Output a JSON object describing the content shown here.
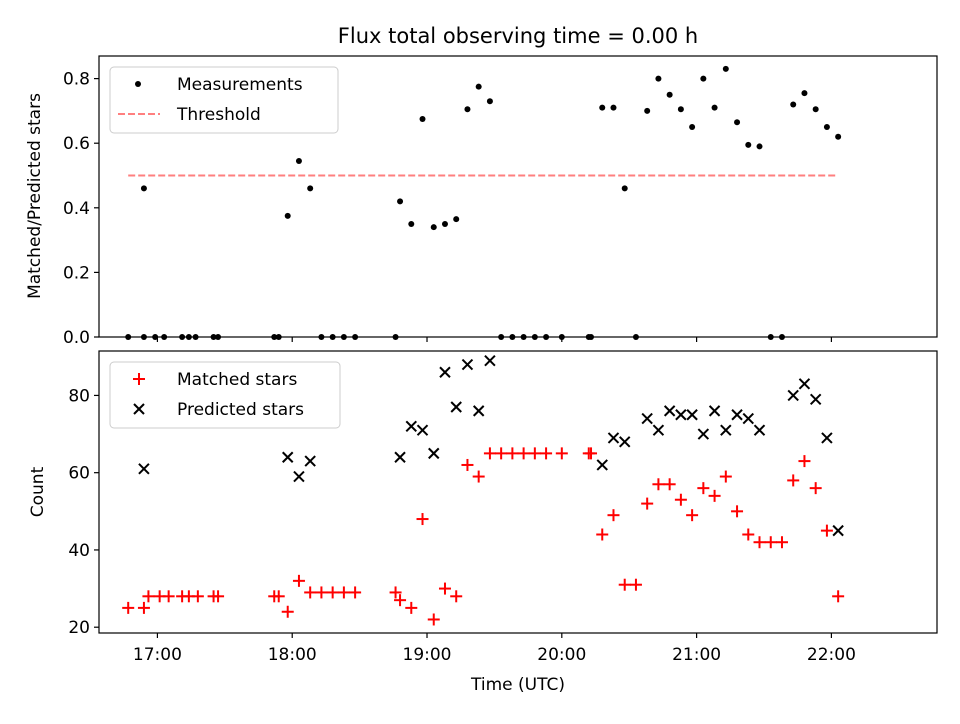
{
  "figure": {
    "title": "Flux total observing time = 0.00 h",
    "xlabel": "Time (UTC)",
    "x_ticks": [
      "17:00",
      "18:00",
      "19:00",
      "20:00",
      "21:00",
      "22:00"
    ]
  },
  "colors": {
    "matched": "#ff0000",
    "predicted": "#000000",
    "threshold": "#ff7f7f",
    "measurements": "#000000"
  },
  "chart_data": [
    {
      "type": "scatter",
      "ylabel": "Matched/Predicted stars",
      "ylim": [
        0,
        0.87
      ],
      "xlim": [
        "16:34",
        "22:47"
      ],
      "y_ticks": [
        "0.0",
        "0.2",
        "0.4",
        "0.6",
        "0.8"
      ],
      "legend": {
        "position": "top-left",
        "entries": [
          "Measurements",
          "Threshold"
        ]
      },
      "threshold": {
        "name": "Threshold",
        "y": 0.5,
        "x_range": [
          "16:47",
          "22:02"
        ]
      },
      "series": [
        {
          "name": "Measurements",
          "points": [
            [
              "16:47",
              0
            ],
            [
              "16:54",
              0.46
            ],
            [
              "16:54",
              0
            ],
            [
              "16:59",
              0
            ],
            [
              "17:03",
              0
            ],
            [
              "17:11",
              0
            ],
            [
              "17:14",
              0
            ],
            [
              "17:17",
              0
            ],
            [
              "17:25",
              0
            ],
            [
              "17:27",
              0
            ],
            [
              "17:52",
              0
            ],
            [
              "17:54",
              0
            ],
            [
              "17:58",
              0.375
            ],
            [
              "18:03",
              0.545
            ],
            [
              "18:08",
              0.46
            ],
            [
              "18:13",
              0
            ],
            [
              "18:18",
              0
            ],
            [
              "18:23",
              0
            ],
            [
              "18:28",
              0
            ],
            [
              "18:46",
              0
            ],
            [
              "18:48",
              0.42
            ],
            [
              "18:53",
              0.35
            ],
            [
              "18:58",
              0.675
            ],
            [
              "19:03",
              0.34
            ],
            [
              "19:08",
              0.35
            ],
            [
              "19:13",
              0.365
            ],
            [
              "19:18",
              0.705
            ],
            [
              "19:23",
              0.775
            ],
            [
              "19:28",
              0.73
            ],
            [
              "19:33",
              0
            ],
            [
              "19:38",
              0
            ],
            [
              "19:43",
              0
            ],
            [
              "19:48",
              0
            ],
            [
              "19:53",
              0
            ],
            [
              "20:00",
              0
            ],
            [
              "20:12",
              0
            ],
            [
              "20:13",
              0
            ],
            [
              "20:18",
              0.71
            ],
            [
              "20:23",
              0.71
            ],
            [
              "20:28",
              0.46
            ],
            [
              "20:33",
              0
            ],
            [
              "20:38",
              0.7
            ],
            [
              "20:43",
              0.8
            ],
            [
              "20:48",
              0.75
            ],
            [
              "20:53",
              0.705
            ],
            [
              "20:58",
              0.65
            ],
            [
              "21:03",
              0.8
            ],
            [
              "21:08",
              0.71
            ],
            [
              "21:13",
              0.83
            ],
            [
              "21:18",
              0.665
            ],
            [
              "21:23",
              0.595
            ],
            [
              "21:28",
              0.59
            ],
            [
              "21:33",
              0
            ],
            [
              "21:38",
              0
            ],
            [
              "21:43",
              0.72
            ],
            [
              "21:48",
              0.755
            ],
            [
              "21:53",
              0.705
            ],
            [
              "21:58",
              0.65
            ],
            [
              "22:03",
              0.62
            ]
          ]
        }
      ]
    },
    {
      "type": "scatter",
      "ylabel": "Count",
      "ylim": [
        18.5,
        91.5
      ],
      "xlim": [
        "16:34",
        "22:47"
      ],
      "y_ticks": [
        "20",
        "40",
        "60",
        "80"
      ],
      "legend": {
        "position": "top-left",
        "entries": [
          "Matched stars",
          "Predicted stars"
        ]
      },
      "series": [
        {
          "name": "Matched stars",
          "marker": "plus",
          "points": [
            [
              "16:47",
              25
            ],
            [
              "16:54",
              25
            ],
            [
              "16:56",
              28
            ],
            [
              "17:01",
              28
            ],
            [
              "17:05",
              28
            ],
            [
              "17:11",
              28
            ],
            [
              "17:14",
              28
            ],
            [
              "17:18",
              28
            ],
            [
              "17:25",
              28
            ],
            [
              "17:27",
              28
            ],
            [
              "17:52",
              28
            ],
            [
              "17:54",
              28
            ],
            [
              "17:58",
              24
            ],
            [
              "18:03",
              32
            ],
            [
              "18:08",
              29
            ],
            [
              "18:13",
              29
            ],
            [
              "18:18",
              29
            ],
            [
              "18:23",
              29
            ],
            [
              "18:28",
              29
            ],
            [
              "18:46",
              29
            ],
            [
              "18:48",
              27
            ],
            [
              "18:53",
              25
            ],
            [
              "18:58",
              48
            ],
            [
              "19:03",
              22
            ],
            [
              "19:08",
              30
            ],
            [
              "19:13",
              28
            ],
            [
              "19:18",
              62
            ],
            [
              "19:23",
              59
            ],
            [
              "19:28",
              65
            ],
            [
              "19:33",
              65
            ],
            [
              "19:38",
              65
            ],
            [
              "19:43",
              65
            ],
            [
              "19:48",
              65
            ],
            [
              "19:53",
              65
            ],
            [
              "20:00",
              65
            ],
            [
              "20:12",
              65
            ],
            [
              "20:13",
              65
            ],
            [
              "20:18",
              44
            ],
            [
              "20:23",
              49
            ],
            [
              "20:28",
              31
            ],
            [
              "20:33",
              31
            ],
            [
              "20:38",
              52
            ],
            [
              "20:43",
              57
            ],
            [
              "20:48",
              57
            ],
            [
              "20:53",
              53
            ],
            [
              "20:58",
              49
            ],
            [
              "21:03",
              56
            ],
            [
              "21:08",
              54
            ],
            [
              "21:13",
              59
            ],
            [
              "21:18",
              50
            ],
            [
              "21:23",
              44
            ],
            [
              "21:28",
              42
            ],
            [
              "21:33",
              42
            ],
            [
              "21:38",
              42
            ],
            [
              "21:43",
              58
            ],
            [
              "21:48",
              63
            ],
            [
              "21:53",
              56
            ],
            [
              "21:58",
              45
            ],
            [
              "22:03",
              28
            ]
          ]
        },
        {
          "name": "Predicted stars",
          "marker": "x",
          "points": [
            [
              "16:54",
              61
            ],
            [
              "17:58",
              64
            ],
            [
              "18:03",
              59
            ],
            [
              "18:08",
              63
            ],
            [
              "18:48",
              64
            ],
            [
              "18:53",
              72
            ],
            [
              "18:58",
              71
            ],
            [
              "19:03",
              65
            ],
            [
              "19:08",
              86
            ],
            [
              "19:13",
              77
            ],
            [
              "19:18",
              88
            ],
            [
              "19:23",
              76
            ],
            [
              "19:28",
              89
            ],
            [
              "20:18",
              62
            ],
            [
              "20:23",
              69
            ],
            [
              "20:28",
              68
            ],
            [
              "20:38",
              74
            ],
            [
              "20:43",
              71
            ],
            [
              "20:48",
              76
            ],
            [
              "20:53",
              75
            ],
            [
              "20:58",
              75
            ],
            [
              "21:03",
              70
            ],
            [
              "21:08",
              76
            ],
            [
              "21:13",
              71
            ],
            [
              "21:18",
              75
            ],
            [
              "21:23",
              74
            ],
            [
              "21:28",
              71
            ],
            [
              "21:43",
              80
            ],
            [
              "21:48",
              83
            ],
            [
              "21:53",
              79
            ],
            [
              "21:58",
              69
            ],
            [
              "22:03",
              45
            ]
          ]
        }
      ]
    }
  ]
}
